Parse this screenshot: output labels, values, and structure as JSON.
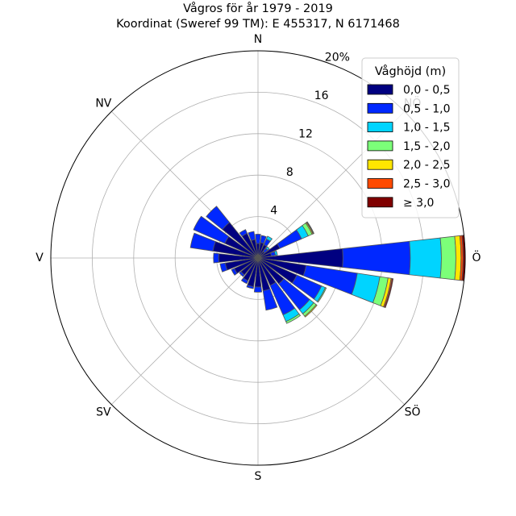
{
  "chart_data": {
    "type": "windrose",
    "title": "Vågros för år 1979 - 2019",
    "subtitle": "Koordinat (Sweref 99 TM): E 455317, N 6171468",
    "direction_labels": [
      {
        "label": "N",
        "angle": 0
      },
      {
        "label": "NV",
        "angle": 315
      },
      {
        "label": "V",
        "angle": 270
      },
      {
        "label": "SV",
        "angle": 225
      },
      {
        "label": "S",
        "angle": 180
      },
      {
        "label": "SÖ",
        "angle": 135
      },
      {
        "label": "Ö",
        "angle": 90
      },
      {
        "label": "NÖ",
        "angle": 45
      }
    ],
    "radial_ticks": [
      "4",
      "8",
      "12",
      "16",
      "20%"
    ],
    "radial_values": [
      4,
      8,
      12,
      16,
      20
    ],
    "rmax": 20,
    "grid": true,
    "legend": {
      "title": "Våghöjd (m)",
      "placement": "top-right",
      "items": [
        {
          "label": "0,0 - 0,5",
          "color": "#000080"
        },
        {
          "label": "0,5 - 1,0",
          "color": "#0028ff"
        },
        {
          "label": "1,0 - 1,5",
          "color": "#00d4ff"
        },
        {
          "label": "1,5 - 2,0",
          "color": "#7cff79"
        },
        {
          "label": "2,0 - 2,5",
          "color": "#ffe600"
        },
        {
          "label": "2,5 - 3,0",
          "color": "#ff4a00"
        },
        {
          "label": "≥ 3,0",
          "color": "#800000"
        }
      ]
    },
    "sectors": [
      {
        "dir": 0,
        "values": [
          1.4,
          0.9,
          0,
          0,
          0,
          0,
          0
        ]
      },
      {
        "dir": 15,
        "values": [
          1.5,
          0.7,
          0,
          0,
          0,
          0,
          0
        ]
      },
      {
        "dir": 30,
        "values": [
          1.4,
          0.6,
          0.3,
          0,
          0,
          0,
          0
        ]
      },
      {
        "dir": 45,
        "values": [
          0.8,
          0.4,
          0.2,
          0,
          0,
          0,
          0
        ]
      },
      {
        "dir": 60,
        "values": [
          2.3,
          2.3,
          0.7,
          0.4,
          0.1,
          0.05,
          0.05
        ]
      },
      {
        "dir": 75,
        "values": [
          1.3,
          0.4,
          0.2,
          0,
          0,
          0,
          0
        ]
      },
      {
        "dir": 90,
        "values": [
          8.2,
          6.5,
          3.0,
          1.4,
          0.5,
          0.2,
          0.2
        ]
      },
      {
        "dir": 105,
        "values": [
          4.7,
          5.0,
          2.2,
          0.8,
          0.3,
          0.1,
          0.1
        ]
      },
      {
        "dir": 120,
        "values": [
          4.1,
          2.6,
          0.4,
          0.1,
          0,
          0,
          0
        ]
      },
      {
        "dir": 135,
        "values": [
          3.2,
          3.2,
          0.5,
          0.3,
          0.1,
          0,
          0
        ]
      },
      {
        "dir": 150,
        "values": [
          2.9,
          3.1,
          0.7,
          0.2,
          0,
          0,
          0
        ]
      },
      {
        "dir": 165,
        "values": [
          3.2,
          1.9,
          0,
          0,
          0,
          0,
          0
        ]
      },
      {
        "dir": 180,
        "values": [
          2.8,
          0.5,
          0,
          0,
          0,
          0,
          0
        ]
      },
      {
        "dir": 195,
        "values": [
          2.8,
          0.2,
          0,
          0,
          0,
          0,
          0
        ]
      },
      {
        "dir": 210,
        "values": [
          2.4,
          0.3,
          0,
          0,
          0,
          0,
          0
        ]
      },
      {
        "dir": 225,
        "values": [
          2.1,
          0.2,
          0,
          0,
          0,
          0,
          0
        ]
      },
      {
        "dir": 240,
        "values": [
          2.5,
          0.3,
          0,
          0,
          0,
          0,
          0
        ]
      },
      {
        "dir": 255,
        "values": [
          3.2,
          0.5,
          0,
          0,
          0,
          0,
          0
        ]
      },
      {
        "dir": 270,
        "values": [
          3.8,
          0.5,
          0,
          0,
          0,
          0,
          0
        ]
      },
      {
        "dir": 285,
        "values": [
          4.4,
          2.2,
          0,
          0,
          0,
          0,
          0
        ]
      },
      {
        "dir": 300,
        "values": [
          3.5,
          3.3,
          0,
          0,
          0,
          0,
          0
        ]
      },
      {
        "dir": 315,
        "values": [
          4.4,
          2.0,
          0,
          0,
          0,
          0,
          0
        ]
      },
      {
        "dir": 330,
        "values": [
          2.6,
          0.4,
          0,
          0,
          0,
          0,
          0
        ]
      },
      {
        "dir": 345,
        "values": [
          1.8,
          0.8,
          0,
          0,
          0,
          0,
          0
        ]
      }
    ]
  }
}
